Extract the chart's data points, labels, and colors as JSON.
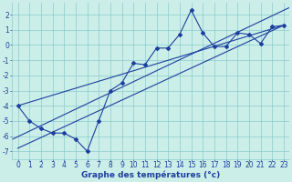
{
  "x": [
    0,
    1,
    2,
    3,
    4,
    5,
    6,
    7,
    8,
    9,
    10,
    11,
    12,
    13,
    14,
    15,
    16,
    17,
    18,
    19,
    20,
    21,
    22,
    23
  ],
  "y_temp": [
    -4.0,
    -5.0,
    -5.5,
    -5.8,
    -5.8,
    -6.2,
    -7.0,
    -5.0,
    -3.0,
    -2.5,
    -1.2,
    -1.3,
    -0.2,
    -0.2,
    0.7,
    2.3,
    0.8,
    -0.1,
    -0.1,
    0.8,
    0.7,
    0.1,
    1.2,
    1.3
  ],
  "line_color": "#1c3fa0",
  "bg_color": "#cceee8",
  "xlabel": "Graphe des températures (°c)",
  "xlabel_fontsize": 6.5,
  "tick_fontsize": 5.5,
  "ylim": [
    -7.5,
    2.8
  ],
  "xlim": [
    -0.5,
    23.5
  ],
  "yticks": [
    -7,
    -6,
    -5,
    -4,
    -3,
    -2,
    -1,
    0,
    1,
    2
  ],
  "xticks": [
    0,
    1,
    2,
    3,
    4,
    5,
    6,
    7,
    8,
    9,
    10,
    11,
    12,
    13,
    14,
    15,
    16,
    17,
    18,
    19,
    20,
    21,
    22,
    23
  ],
  "grid_color": "#88cccc",
  "marker_style": "D",
  "marker_size": 2.0,
  "line1_x": [
    0,
    23
  ],
  "line1_y": [
    -6.8,
    1.3
  ],
  "line2_x": [
    0,
    23
  ],
  "line2_y": [
    -4.0,
    1.3
  ]
}
